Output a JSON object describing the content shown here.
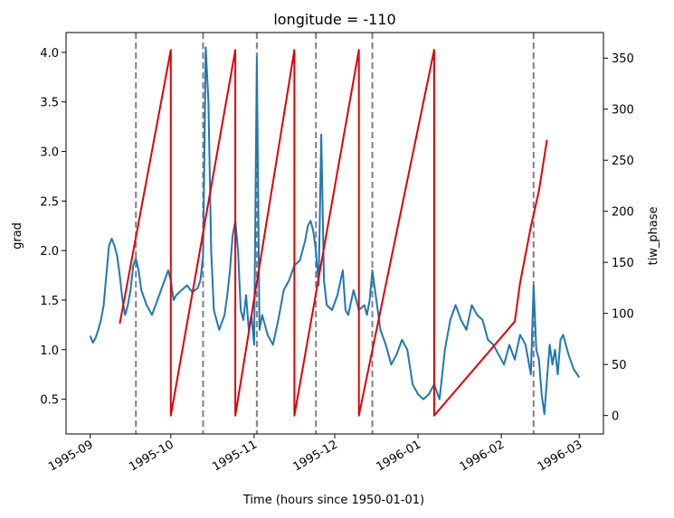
{
  "chart_data": {
    "type": "line",
    "title": "longitude = -110",
    "xlabel": "Time (hours since 1950-01-01)",
    "ylabel_left": "grad",
    "ylabel_right": "tiw_phase",
    "x_ticks": [
      "1995-09",
      "1995-10",
      "1995-11",
      "1995-12",
      "1996-01",
      "1996-02",
      "1996-03"
    ],
    "x_tick_dates": [
      "1995-09-01",
      "1995-10-01",
      "1995-11-01",
      "1995-12-01",
      "1996-01-01",
      "1996-02-01",
      "1996-03-01"
    ],
    "xlim": [
      "1995-08-23",
      "1996-03-10"
    ],
    "ylim_left": [
      0.15,
      4.2
    ],
    "ylim_right": [
      -18,
      375
    ],
    "yticks_left": [
      "0.5",
      "1.0",
      "1.5",
      "2.0",
      "2.5",
      "3.0",
      "3.5",
      "4.0"
    ],
    "yticks_right": [
      "0",
      "50",
      "100",
      "150",
      "200",
      "250",
      "300",
      "350"
    ],
    "grid": false,
    "colors": {
      "grad": "#1f77b4",
      "tiw_phase": "#e00000",
      "vlines": "#808080"
    },
    "vlines_dates": [
      "1995-09-18",
      "1995-10-13",
      "1995-11-02",
      "1995-11-24",
      "1995-12-15",
      "1996-02-13"
    ],
    "series": [
      {
        "axis": "left",
        "x": [
          "1995-09-01",
          "1995-09-02",
          "1995-09-03",
          "1995-09-04",
          "1995-09-05",
          "1995-09-06",
          "1995-09-07",
          "1995-09-08",
          "1995-09-09",
          "1995-09-10",
          "1995-09-11",
          "1995-09-12",
          "1995-09-13",
          "1995-09-14",
          "1995-09-15",
          "1995-09-16",
          "1995-09-17",
          "1995-09-18",
          "1995-09-19",
          "1995-09-20",
          "1995-09-22",
          "1995-09-24",
          "1995-09-26",
          "1995-09-28",
          "1995-09-30",
          "1995-10-01",
          "1995-10-02",
          "1995-10-03",
          "1995-10-05",
          "1995-10-07",
          "1995-10-09",
          "1995-10-11",
          "1995-10-12",
          "1995-10-13",
          "1995-10-14",
          "1995-10-15",
          "1995-10-16",
          "1995-10-17",
          "1995-10-19",
          "1995-10-21",
          "1995-10-22",
          "1995-10-23",
          "1995-10-24",
          "1995-10-25",
          "1995-10-26",
          "1995-10-27",
          "1995-10-28",
          "1995-10-29",
          "1995-10-30",
          "1995-10-31",
          "1995-11-01",
          "1995-11-02",
          "1995-11-03",
          "1995-11-04",
          "1995-11-06",
          "1995-11-08",
          "1995-11-10",
          "1995-11-12",
          "1995-11-14",
          "1995-11-16",
          "1995-11-18",
          "1995-11-20",
          "1995-11-21",
          "1995-11-22",
          "1995-11-23",
          "1995-11-24",
          "1995-11-25",
          "1995-11-26",
          "1995-11-27",
          "1995-11-28",
          "1995-11-30",
          "1995-12-02",
          "1995-12-04",
          "1995-12-05",
          "1995-12-06",
          "1995-12-08",
          "1995-12-10",
          "1995-12-12",
          "1995-12-13",
          "1995-12-14",
          "1995-12-15",
          "1995-12-16",
          "1995-12-18",
          "1995-12-20",
          "1995-12-22",
          "1995-12-24",
          "1995-12-26",
          "1995-12-28",
          "1995-12-30",
          "1996-01-01",
          "1996-01-03",
          "1996-01-05",
          "1996-01-07",
          "1996-01-09",
          "1996-01-11",
          "1996-01-13",
          "1996-01-15",
          "1996-01-17",
          "1996-01-19",
          "1996-01-21",
          "1996-01-23",
          "1996-01-25",
          "1996-01-27",
          "1996-01-29",
          "1996-01-31",
          "1996-02-02",
          "1996-02-04",
          "1996-02-06",
          "1996-02-08",
          "1996-02-10",
          "1996-02-12",
          "1996-02-13",
          "1996-02-14",
          "1996-02-15",
          "1996-02-16",
          "1996-02-17",
          "1996-02-18",
          "1996-02-19",
          "1996-02-20",
          "1996-02-21",
          "1996-02-22",
          "1996-02-23",
          "1996-02-24",
          "1996-02-26",
          "1996-02-28",
          "1996-03-01"
        ],
        "values": [
          1.14,
          1.07,
          1.12,
          1.2,
          1.3,
          1.45,
          1.75,
          2.05,
          2.12,
          2.05,
          1.95,
          1.75,
          1.5,
          1.35,
          1.45,
          1.6,
          1.85,
          1.92,
          1.8,
          1.6,
          1.45,
          1.35,
          1.5,
          1.65,
          1.8,
          1.7,
          1.5,
          1.55,
          1.6,
          1.65,
          1.58,
          1.62,
          1.7,
          1.95,
          4.05,
          3.5,
          2.0,
          1.4,
          1.2,
          1.35,
          1.55,
          1.8,
          2.15,
          2.3,
          2.0,
          1.4,
          1.3,
          1.55,
          1.2,
          1.35,
          1.05,
          3.95,
          1.2,
          1.35,
          1.15,
          1.05,
          1.3,
          1.6,
          1.7,
          1.85,
          1.9,
          2.1,
          2.25,
          2.3,
          2.2,
          2.0,
          1.65,
          3.17,
          1.7,
          1.45,
          1.4,
          1.55,
          1.8,
          1.4,
          1.35,
          1.6,
          1.4,
          1.45,
          1.35,
          1.5,
          1.8,
          1.6,
          1.2,
          1.05,
          0.85,
          0.95,
          1.1,
          1.0,
          0.65,
          0.55,
          0.5,
          0.55,
          0.65,
          0.5,
          1.0,
          1.3,
          1.45,
          1.3,
          1.2,
          1.45,
          1.35,
          1.3,
          1.1,
          1.05,
          0.95,
          0.85,
          1.05,
          0.9,
          1.15,
          1.05,
          0.75,
          1.65,
          1.0,
          0.9,
          0.55,
          0.35,
          0.7,
          1.05,
          0.85,
          1.0,
          0.75,
          1.1,
          1.15,
          0.95,
          0.8,
          0.72
        ]
      },
      {
        "axis": "right",
        "x": [
          "1995-09-12",
          "1995-10-01",
          "1995-10-01",
          "1995-10-25",
          "1995-10-25",
          "1995-11-16",
          "1995-11-16",
          "1995-12-10",
          "1995-12-10",
          "1996-01-07",
          "1996-01-07",
          "1996-02-06",
          "1996-02-08",
          "1996-02-12",
          "1996-02-15",
          "1996-02-18"
        ],
        "values": [
          90,
          358,
          0,
          358,
          0,
          358,
          0,
          358,
          0,
          358,
          0,
          92,
          130,
          185,
          220,
          270
        ]
      }
    ]
  }
}
